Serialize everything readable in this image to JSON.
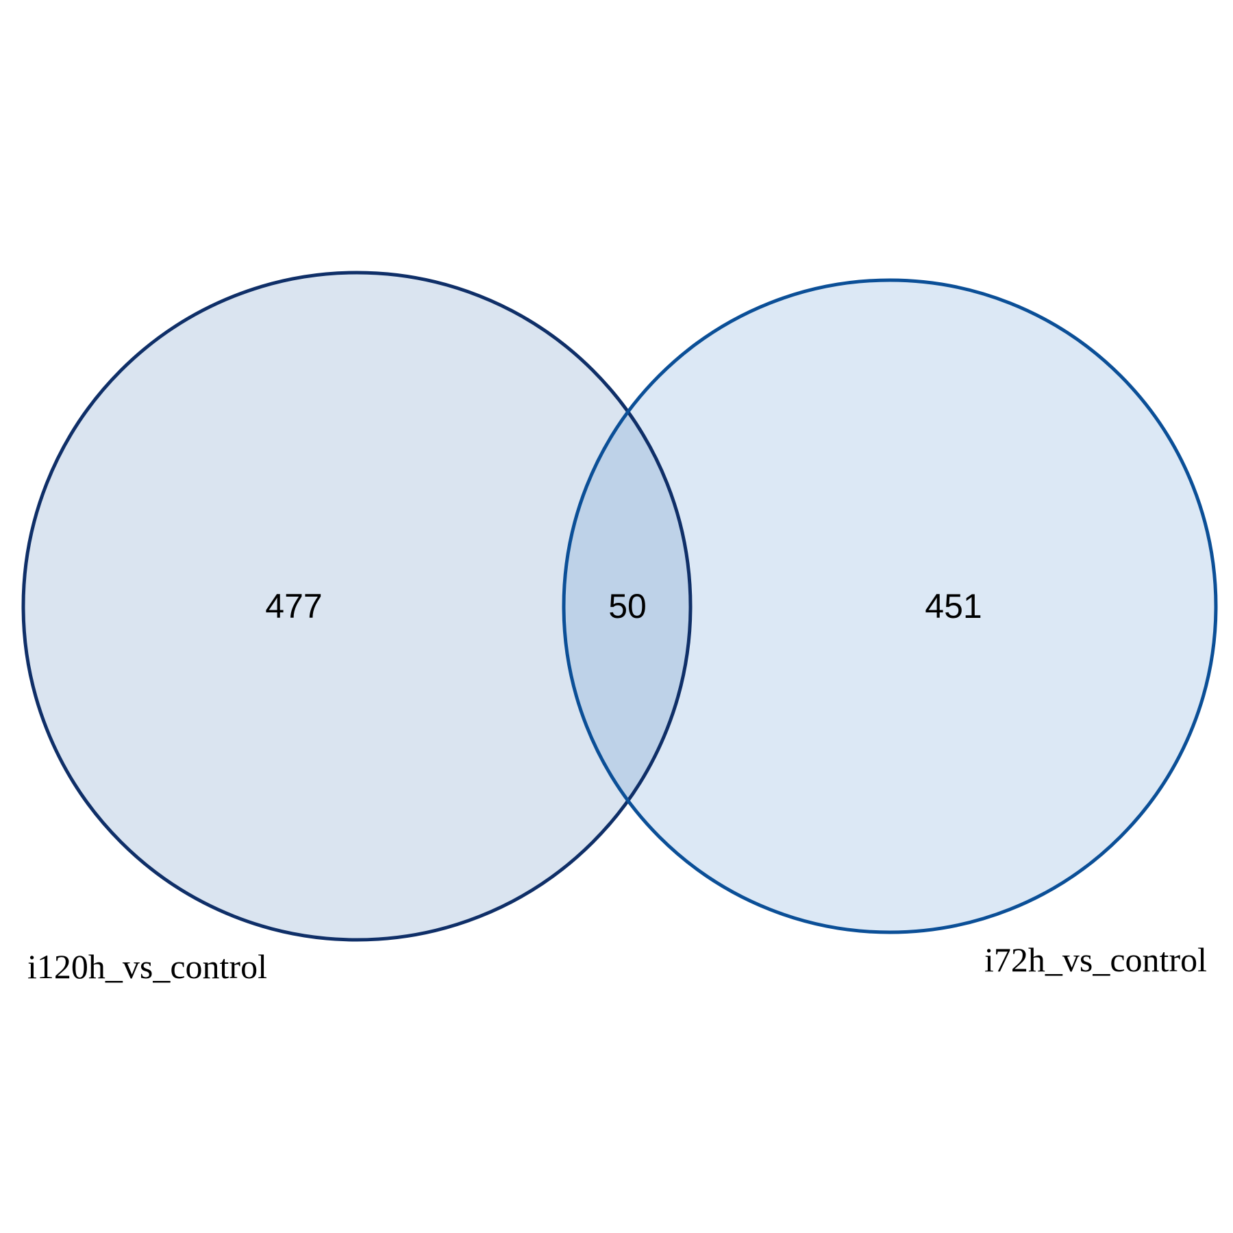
{
  "venn": {
    "sets": [
      {
        "id": "a",
        "label": "i120h_vs_control",
        "only_count": "477",
        "fill": "#dae4f0",
        "stroke": "#0f2f68"
      },
      {
        "id": "b",
        "label": "i72h_vs_control",
        "only_count": "451",
        "fill": "#dce8f5",
        "stroke": "#0b4f97"
      }
    ],
    "intersection": {
      "count": "50",
      "fill": "#bed2e8"
    }
  }
}
